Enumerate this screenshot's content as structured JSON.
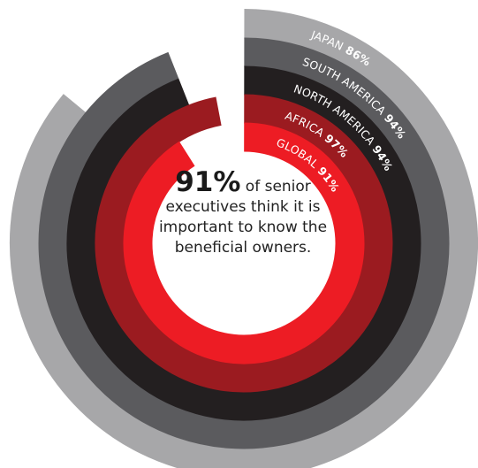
{
  "chart_data": {
    "type": "radial-bar",
    "series": [
      {
        "name": "JAPAN",
        "value": 86,
        "value_label": "86%",
        "color": "#a7a7a9"
      },
      {
        "name": "SOUTH AMERICA",
        "value": 94,
        "value_label": "94%",
        "color": "#5b5b5e"
      },
      {
        "name": "NORTH AMERICA",
        "value": 94,
        "value_label": "94%",
        "color": "#231f20"
      },
      {
        "name": "AFRICA",
        "value": 97,
        "value_label": "97%",
        "color": "#9b1b20"
      },
      {
        "name": "GLOBAL",
        "value": 91,
        "value_label": "91%",
        "color": "#ed1c24"
      }
    ],
    "center": {
      "highlight": "91%",
      "text": " of senior executives think it is important to know the beneficial owners."
    }
  }
}
